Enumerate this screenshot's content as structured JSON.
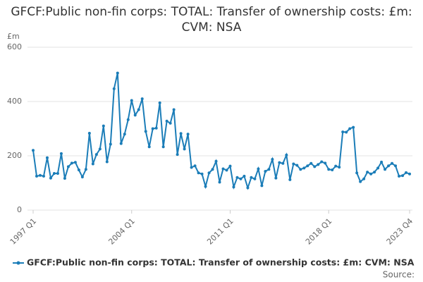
{
  "chart_data": {
    "type": "line",
    "title": "GFCF:Public non-fin corps: TOTAL: Transfer of ownership costs: £m: CVM: NSA",
    "y_unit_label": "£m",
    "source_label": "Source:",
    "categories": [
      "1997 Q1",
      null,
      null,
      null,
      null,
      null,
      null,
      null,
      null,
      null,
      null,
      null,
      null,
      null,
      null,
      null,
      null,
      null,
      null,
      null,
      null,
      null,
      null,
      null,
      null,
      null,
      null,
      null,
      "2004 Q1",
      null,
      null,
      null,
      null,
      null,
      null,
      null,
      null,
      null,
      null,
      null,
      null,
      null,
      null,
      null,
      null,
      null,
      null,
      null,
      null,
      null,
      null,
      null,
      null,
      null,
      null,
      null,
      "2011 Q1",
      null,
      null,
      null,
      null,
      null,
      null,
      null,
      null,
      null,
      null,
      null,
      null,
      null,
      null,
      null,
      null,
      null,
      null,
      null,
      null,
      null,
      null,
      null,
      null,
      null,
      null,
      null,
      "2018 Q1",
      null,
      null,
      null,
      null,
      null,
      null,
      null,
      null,
      null,
      null,
      null,
      null,
      null,
      null,
      null,
      null,
      null,
      null,
      null,
      null,
      null,
      null,
      "2023 Q4"
    ],
    "series": [
      {
        "name": "GFCF:Public non-fin corps: TOTAL: Transfer of ownership costs: £m: CVM: NSA",
        "color": "#1b7db8",
        "values": [
          220,
          125,
          128,
          125,
          193,
          118,
          135,
          135,
          208,
          117,
          160,
          173,
          176,
          148,
          122,
          150,
          283,
          170,
          205,
          225,
          310,
          178,
          243,
          447,
          505,
          245,
          280,
          333,
          404,
          350,
          370,
          410,
          290,
          233,
          300,
          302,
          395,
          233,
          328,
          320,
          370,
          205,
          282,
          225,
          280,
          157,
          163,
          137,
          133,
          87,
          137,
          150,
          180,
          103,
          152,
          147,
          162,
          85,
          120,
          115,
          125,
          82,
          120,
          115,
          152,
          90,
          143,
          150,
          187,
          118,
          175,
          172,
          203,
          112,
          170,
          165,
          150,
          155,
          163,
          172,
          160,
          168,
          178,
          173,
          150,
          148,
          162,
          158,
          288,
          287,
          300,
          305,
          137,
          105,
          115,
          140,
          133,
          140,
          155,
          177,
          150,
          163,
          172,
          163,
          125,
          127,
          138,
          133
        ]
      }
    ],
    "ylim": [
      0,
      600
    ],
    "yticks": [
      0,
      200,
      400,
      600
    ],
    "grid": true
  }
}
